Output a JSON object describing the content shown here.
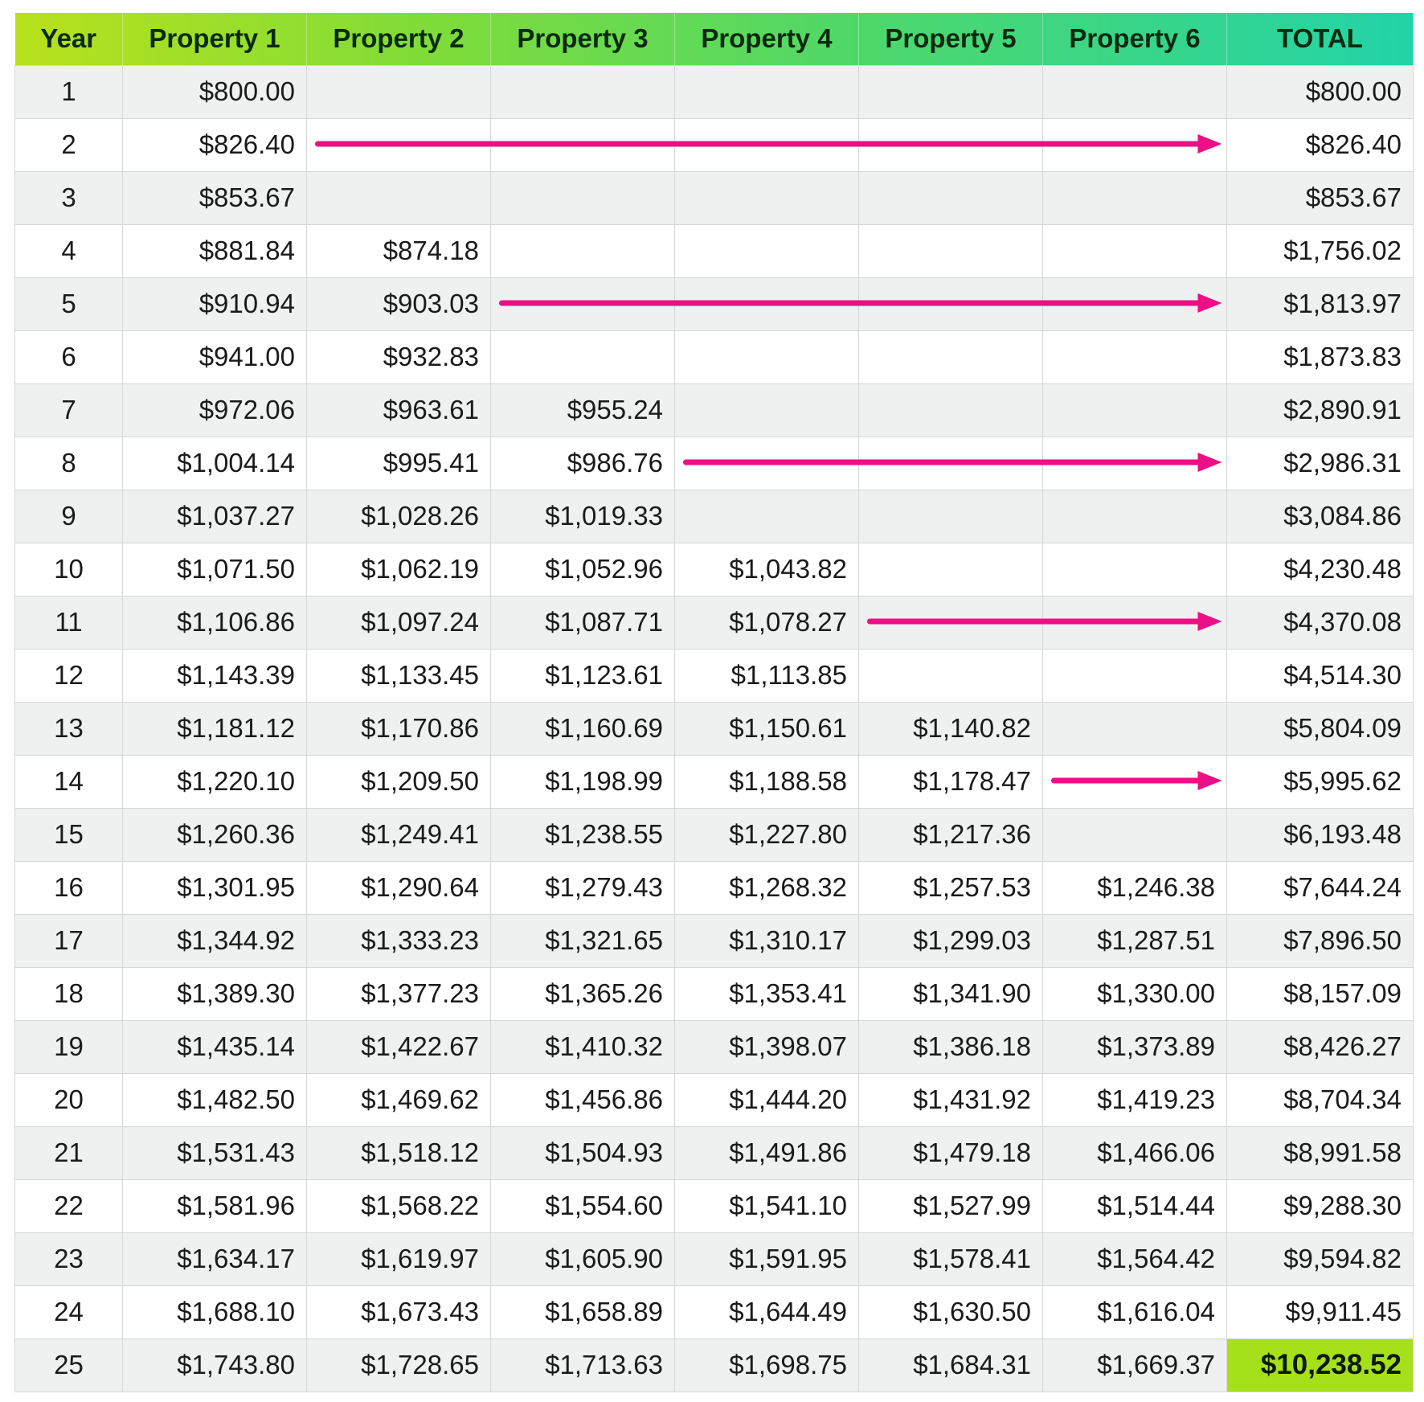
{
  "header": {
    "year": "Year",
    "properties": [
      "Property 1",
      "Property 2",
      "Property 3",
      "Property 4",
      "Property 5",
      "Property 6"
    ],
    "total": "TOTAL"
  },
  "rows": [
    {
      "year": "1",
      "values": [
        "$800.00",
        "",
        "",
        "",
        "",
        ""
      ],
      "total": "$800.00"
    },
    {
      "year": "2",
      "values": [
        "$826.40",
        "",
        "",
        "",
        "",
        ""
      ],
      "total": "$826.40"
    },
    {
      "year": "3",
      "values": [
        "$853.67",
        "",
        "",
        "",
        "",
        ""
      ],
      "total": "$853.67"
    },
    {
      "year": "4",
      "values": [
        "$881.84",
        "$874.18",
        "",
        "",
        "",
        ""
      ],
      "total": "$1,756.02"
    },
    {
      "year": "5",
      "values": [
        "$910.94",
        "$903.03",
        "",
        "",
        "",
        ""
      ],
      "total": "$1,813.97"
    },
    {
      "year": "6",
      "values": [
        "$941.00",
        "$932.83",
        "",
        "",
        "",
        ""
      ],
      "total": "$1,873.83"
    },
    {
      "year": "7",
      "values": [
        "$972.06",
        "$963.61",
        "$955.24",
        "",
        "",
        ""
      ],
      "total": "$2,890.91"
    },
    {
      "year": "8",
      "values": [
        "$1,004.14",
        "$995.41",
        "$986.76",
        "",
        "",
        ""
      ],
      "total": "$2,986.31"
    },
    {
      "year": "9",
      "values": [
        "$1,037.27",
        "$1,028.26",
        "$1,019.33",
        "",
        "",
        ""
      ],
      "total": "$3,084.86"
    },
    {
      "year": "10",
      "values": [
        "$1,071.50",
        "$1,062.19",
        "$1,052.96",
        "$1,043.82",
        "",
        ""
      ],
      "total": "$4,230.48"
    },
    {
      "year": "11",
      "values": [
        "$1,106.86",
        "$1,097.24",
        "$1,087.71",
        "$1,078.27",
        "",
        ""
      ],
      "total": "$4,370.08"
    },
    {
      "year": "12",
      "values": [
        "$1,143.39",
        "$1,133.45",
        "$1,123.61",
        "$1,113.85",
        "",
        ""
      ],
      "total": "$4,514.30"
    },
    {
      "year": "13",
      "values": [
        "$1,181.12",
        "$1,170.86",
        "$1,160.69",
        "$1,150.61",
        "$1,140.82",
        ""
      ],
      "total": "$5,804.09"
    },
    {
      "year": "14",
      "values": [
        "$1,220.10",
        "$1,209.50",
        "$1,198.99",
        "$1,188.58",
        "$1,178.47",
        ""
      ],
      "total": "$5,995.62"
    },
    {
      "year": "15",
      "values": [
        "$1,260.36",
        "$1,249.41",
        "$1,238.55",
        "$1,227.80",
        "$1,217.36",
        ""
      ],
      "total": "$6,193.48"
    },
    {
      "year": "16",
      "values": [
        "$1,301.95",
        "$1,290.64",
        "$1,279.43",
        "$1,268.32",
        "$1,257.53",
        "$1,246.38"
      ],
      "total": "$7,644.24"
    },
    {
      "year": "17",
      "values": [
        "$1,344.92",
        "$1,333.23",
        "$1,321.65",
        "$1,310.17",
        "$1,299.03",
        "$1,287.51"
      ],
      "total": "$7,896.50"
    },
    {
      "year": "18",
      "values": [
        "$1,389.30",
        "$1,377.23",
        "$1,365.26",
        "$1,353.41",
        "$1,341.90",
        "$1,330.00"
      ],
      "total": "$8,157.09"
    },
    {
      "year": "19",
      "values": [
        "$1,435.14",
        "$1,422.67",
        "$1,410.32",
        "$1,398.07",
        "$1,386.18",
        "$1,373.89"
      ],
      "total": "$8,426.27"
    },
    {
      "year": "20",
      "values": [
        "$1,482.50",
        "$1,469.62",
        "$1,456.86",
        "$1,444.20",
        "$1,431.92",
        "$1,419.23"
      ],
      "total": "$8,704.34"
    },
    {
      "year": "21",
      "values": [
        "$1,531.43",
        "$1,518.12",
        "$1,504.93",
        "$1,491.86",
        "$1,479.18",
        "$1,466.06"
      ],
      "total": "$8,991.58"
    },
    {
      "year": "22",
      "values": [
        "$1,581.96",
        "$1,568.22",
        "$1,554.60",
        "$1,541.10",
        "$1,527.99",
        "$1,514.44"
      ],
      "total": "$9,288.30"
    },
    {
      "year": "23",
      "values": [
        "$1,634.17",
        "$1,619.97",
        "$1,605.90",
        "$1,591.95",
        "$1,578.41",
        "$1,564.42"
      ],
      "total": "$9,594.82"
    },
    {
      "year": "24",
      "values": [
        "$1,688.10",
        "$1,673.43",
        "$1,658.89",
        "$1,644.49",
        "$1,630.50",
        "$1,616.04"
      ],
      "total": "$9,911.45"
    },
    {
      "year": "25",
      "values": [
        "$1,743.80",
        "$1,728.65",
        "$1,713.63",
        "$1,698.75",
        "$1,684.31",
        "$1,669.37"
      ],
      "total": "$10,238.52"
    }
  ],
  "arrows": [
    {
      "year": "2",
      "from_column": "Property 2"
    },
    {
      "year": "5",
      "from_column": "Property 3"
    },
    {
      "year": "8",
      "from_column": "Property 4"
    },
    {
      "year": "11",
      "from_column": "Property 5"
    },
    {
      "year": "14",
      "from_column": "Property 6"
    }
  ],
  "colors": {
    "arrow": "#ec0f85",
    "header_gradient_start": "#b8e11c",
    "header_gradient_end": "#22d3a8",
    "final_total_highlight": "#a6e01a",
    "row_alt": "#eef1ef"
  }
}
